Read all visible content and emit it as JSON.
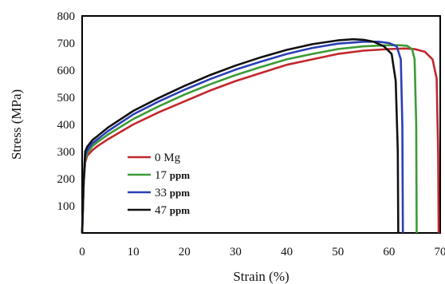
{
  "chart_data": {
    "type": "line",
    "title": "",
    "xlabel": "Strain (%)",
    "ylabel": "Stress (MPa)",
    "xlim": [
      0,
      70
    ],
    "ylim": [
      0,
      800
    ],
    "x_ticks": [
      "0",
      "10",
      "20",
      "30",
      "40",
      "50",
      "60",
      "70"
    ],
    "y_ticks": [
      "800",
      "700",
      "600",
      "500",
      "400",
      "300",
      "200",
      "100"
    ],
    "grid": false,
    "legend_position": "bottom-left",
    "series": [
      {
        "name": "0 Mg",
        "legend_value": "0",
        "legend_unit": "Mg",
        "color": "#c1272d",
        "x": [
          0,
          0.3,
          0.6,
          1,
          2,
          3,
          5,
          10,
          15,
          20,
          25,
          30,
          35,
          40,
          45,
          50,
          55,
          60,
          63,
          65,
          67,
          68.5,
          69.3,
          69.6,
          69.7
        ],
        "y": [
          0,
          180,
          260,
          285,
          305,
          320,
          345,
          400,
          445,
          485,
          525,
          560,
          590,
          620,
          640,
          660,
          672,
          678,
          680,
          678,
          668,
          640,
          570,
          300,
          0
        ]
      },
      {
        "name": "17 ppm",
        "legend_value": "17",
        "legend_unit": "ppm",
        "color": "#3d9b35",
        "x": [
          0,
          0.3,
          0.6,
          1,
          2,
          3,
          5,
          10,
          15,
          20,
          25,
          30,
          35,
          40,
          45,
          50,
          55,
          60,
          62,
          63.5,
          64.5,
          65,
          65.3,
          65.4
        ],
        "y": [
          0,
          185,
          270,
          295,
          320,
          335,
          362,
          420,
          467,
          510,
          548,
          582,
          612,
          640,
          660,
          678,
          688,
          692,
          692,
          690,
          678,
          640,
          400,
          0
        ]
      },
      {
        "name": "33 ppm",
        "legend_value": "33",
        "legend_unit": "ppm",
        "color": "#2b3fb5",
        "x": [
          0,
          0.3,
          0.6,
          1,
          2,
          3,
          5,
          10,
          15,
          20,
          25,
          30,
          35,
          40,
          45,
          50,
          55,
          58,
          60,
          61.5,
          62.3,
          62.6,
          62.7
        ],
        "y": [
          0,
          190,
          285,
          305,
          330,
          345,
          375,
          437,
          485,
          528,
          567,
          602,
          632,
          660,
          682,
          698,
          705,
          705,
          700,
          688,
          640,
          400,
          0
        ]
      },
      {
        "name": "47 ppm",
        "legend_value": "47",
        "legend_unit": "ppm",
        "color": "#111111",
        "x": [
          0,
          0.3,
          0.6,
          1,
          2,
          3,
          5,
          10,
          15,
          20,
          25,
          30,
          35,
          40,
          45,
          50,
          53,
          55,
          57,
          59,
          60.5,
          61.3,
          61.7,
          61.8
        ],
        "y": [
          0,
          195,
          300,
          318,
          342,
          357,
          388,
          450,
          498,
          542,
          582,
          617,
          648,
          675,
          696,
          710,
          714,
          712,
          705,
          688,
          660,
          560,
          300,
          0
        ]
      }
    ]
  }
}
